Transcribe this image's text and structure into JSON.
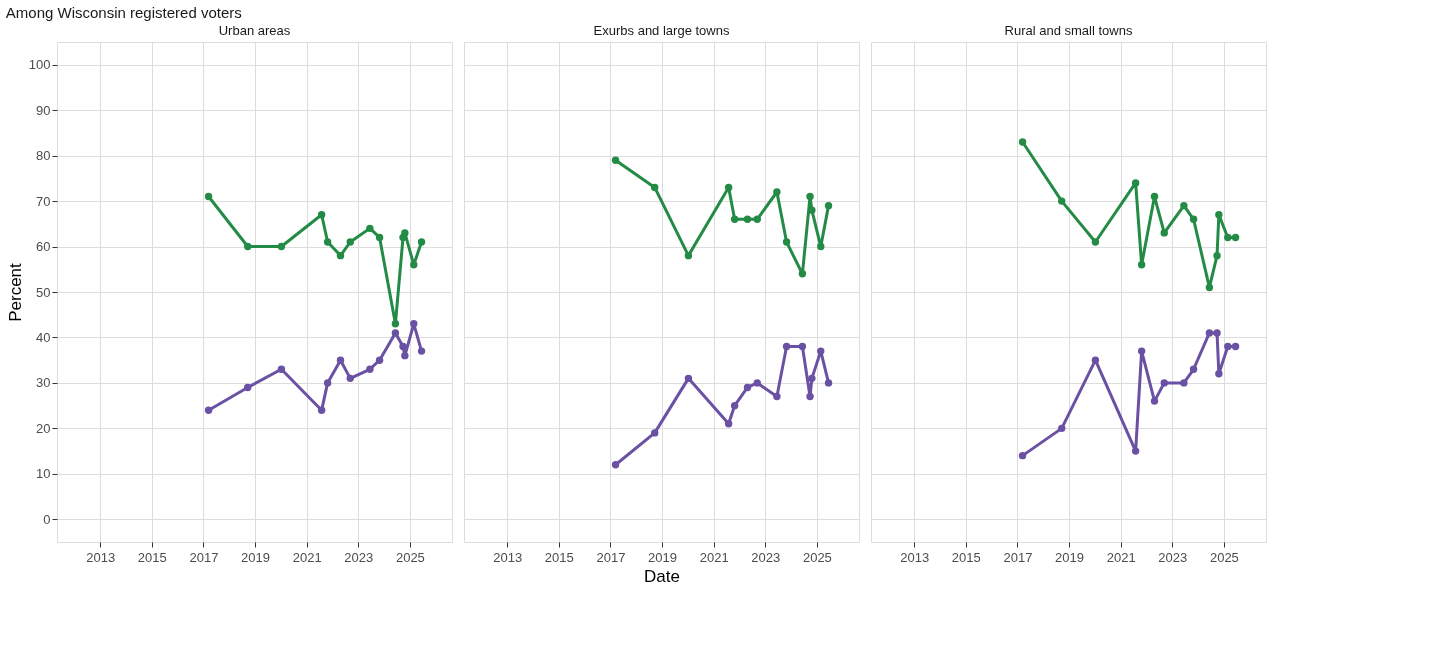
{
  "chart_data": [
    {
      "type": "line",
      "subtitle": "Among Wisconsin registered voters",
      "title": "Urban areas",
      "ylabel": "Percent",
      "x": [
        "2017-03-15",
        "2018-09-20",
        "2020-01-10",
        "2021-08-01",
        "2021-10-25",
        "2022-04-25",
        "2022-09-10",
        "2023-06-15",
        "2023-10-30",
        "2024-06-10",
        "2024-09-26",
        "2024-10-22",
        "2025-02-25",
        "2025-06-15"
      ],
      "series": [
        {
          "color": "#238b45",
          "values": [
            71,
            60,
            60,
            67,
            61,
            58,
            61,
            64,
            62,
            43,
            62,
            63,
            56,
            61
          ]
        },
        {
          "color": "#6a51a3",
          "values": [
            24,
            29,
            33,
            24,
            30,
            35,
            31,
            33,
            35,
            41,
            38,
            36,
            43,
            37
          ]
        }
      ],
      "xlim": [
        "2011-05-01",
        "2026-08-20"
      ],
      "xticks": [
        "2013",
        "2015",
        "2017",
        "2019",
        "2021",
        "2023",
        "2025"
      ],
      "ylim": [
        -5,
        105
      ],
      "yticks": [
        0,
        10,
        20,
        30,
        40,
        50,
        60,
        70,
        80,
        90,
        100
      ],
      "grid": true,
      "marker": "circle",
      "line_style": "solid"
    },
    {
      "type": "line",
      "title": "Exurbs and large towns",
      "xlabel": "Date",
      "x": [
        "2017-03-15",
        "2018-09-20",
        "2020-01-10",
        "2021-08-01",
        "2021-10-25",
        "2022-04-25",
        "2022-09-10",
        "2023-06-15",
        "2023-10-30",
        "2024-06-10",
        "2024-09-26",
        "2024-10-22",
        "2025-02-25",
        "2025-06-15"
      ],
      "series": [
        {
          "color": "#238b45",
          "values": [
            79,
            73,
            58,
            73,
            66,
            66,
            66,
            72,
            61,
            54,
            71,
            68,
            60,
            69
          ]
        },
        {
          "color": "#6a51a3",
          "values": [
            12,
            19,
            31,
            21,
            25,
            29,
            30,
            27,
            38,
            38,
            27,
            31,
            37,
            30
          ]
        }
      ],
      "xlim": [
        "2011-05-01",
        "2026-08-20"
      ],
      "xticks": [
        "2013",
        "2015",
        "2017",
        "2019",
        "2021",
        "2023",
        "2025"
      ],
      "ylim": [
        -5,
        105
      ],
      "yticks": [
        0,
        10,
        20,
        30,
        40,
        50,
        60,
        70,
        80,
        90,
        100
      ],
      "tick_labels": "x",
      "grid": true,
      "marker": "circle",
      "line_style": "solid"
    },
    {
      "type": "line",
      "title": "Rural and small towns",
      "x": [
        "2017-03-15",
        "2018-09-20",
        "2020-01-10",
        "2021-08-01",
        "2021-10-25",
        "2022-04-25",
        "2022-09-10",
        "2023-06-15",
        "2023-10-30",
        "2024-06-10",
        "2024-09-26",
        "2024-10-22",
        "2025-02-25",
        "2025-06-15"
      ],
      "series": [
        {
          "color": "#238b45",
          "values": [
            83,
            70,
            61,
            74,
            56,
            71,
            63,
            69,
            66,
            51,
            58,
            67,
            62,
            62
          ]
        },
        {
          "color": "#6a51a3",
          "values": [
            14,
            20,
            35,
            15,
            37,
            26,
            30,
            30,
            33,
            41,
            41,
            32,
            38,
            38
          ]
        }
      ],
      "xlim": [
        "2011-05-01",
        "2026-08-20"
      ],
      "xticks": [
        "2013",
        "2015",
        "2017",
        "2019",
        "2021",
        "2023",
        "2025"
      ],
      "ylim": [
        -5,
        105
      ],
      "yticks": [
        0,
        10,
        20,
        30,
        40,
        50,
        60,
        70,
        80,
        90,
        100
      ],
      "tick_labels": "x",
      "grid": true,
      "marker": "circle",
      "line_style": "solid"
    }
  ]
}
